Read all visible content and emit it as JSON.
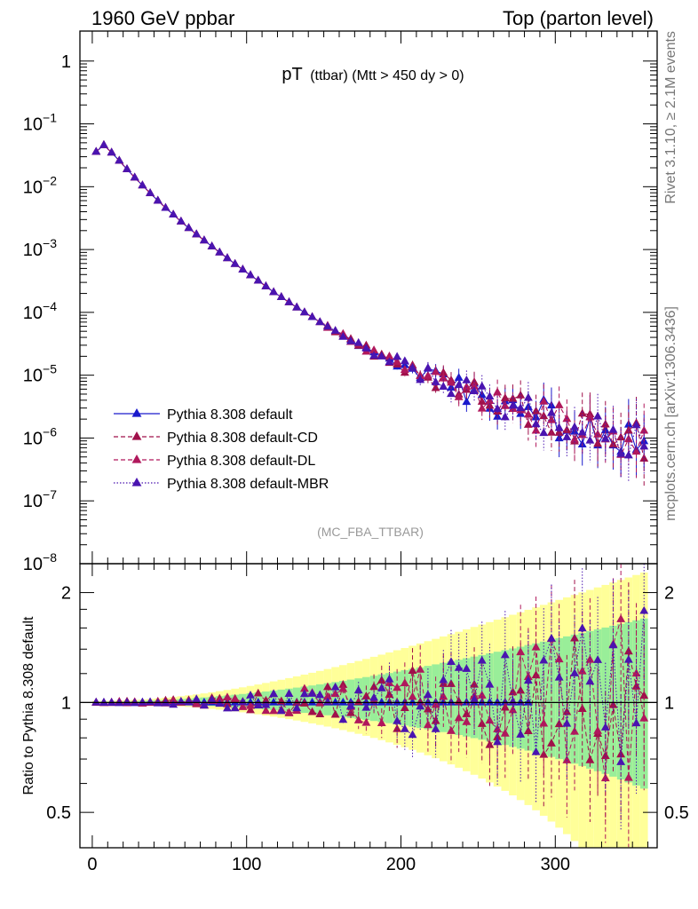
{
  "header": {
    "left": "1960 GeV ppbar",
    "right": "Top (parton level)"
  },
  "side_text": {
    "rivet": "Rivet 3.1.10, ≥ 2.1M events",
    "mcplots": "mcplots.cern.ch [arXiv:1306.3436]"
  },
  "chart_data": [
    {
      "type": "line",
      "panel": "main",
      "title": "pT (ttbar) (Mtt > 450 dy > 0)",
      "title_main": "pT",
      "title_sub": "(ttbar) (Mtt > 450 dy > 0)",
      "watermark": "(MC_FBA_TTBAR)",
      "xlim": [
        -8,
        366
      ],
      "ylim": [
        1e-08,
        3
      ],
      "log_y": true,
      "yticks": [
        {
          "label": "1",
          "value": 1
        },
        {
          "label": "10",
          "exp": "−1",
          "value": 0.1
        },
        {
          "label": "10",
          "exp": "−2",
          "value": 0.01
        },
        {
          "label": "10",
          "exp": "−3",
          "value": 0.001
        },
        {
          "label": "10",
          "exp": "−4",
          "value": 0.0001
        },
        {
          "label": "10",
          "exp": "−5",
          "value": 1e-05
        },
        {
          "label": "10",
          "exp": "−6",
          "value": 1e-06
        },
        {
          "label": "10",
          "exp": "−7",
          "value": 1e-07
        },
        {
          "label": "10",
          "exp": "−8",
          "value": 1e-08
        }
      ],
      "legend_position": "bottom-left",
      "series": [
        {
          "name": "Pythia 8.308 default",
          "color": "#1a1acc",
          "dash": "solid",
          "ratio_offset": 0
        },
        {
          "name": "Pythia 8.308 default-CD",
          "color": "#a0104a",
          "dash": "dashed",
          "ratio_offset": 1
        },
        {
          "name": "Pythia 8.308 default-DL",
          "color": "#b0185c",
          "dash": "dashed",
          "ratio_offset": 2
        },
        {
          "name": "Pythia 8.308 default-MBR",
          "color": "#4a14b0",
          "dash": "dotted",
          "ratio_offset": 3
        }
      ],
      "curve": {
        "x": [
          2.5,
          7.5,
          12.5,
          17.5,
          22.5,
          27.5,
          32.5,
          37.5,
          42.5,
          47.5,
          52.5,
          57.5,
          62.5,
          67.5,
          72.5,
          77.5,
          82.5,
          87.5,
          92.5,
          97.5,
          102.5,
          107.5,
          112.5,
          117.5,
          122.5,
          127.5,
          132.5,
          137.5,
          142.5,
          147.5,
          152.5,
          157.5,
          162.5,
          167.5,
          172.5,
          177.5,
          182.5,
          187.5,
          192.5,
          197.5,
          202.5,
          207.5,
          212.5,
          217.5,
          222.5,
          227.5,
          232.5,
          237.5,
          242.5,
          247.5,
          252.5,
          257.5,
          262.5,
          267.5,
          272.5,
          277.5,
          282.5,
          287.5,
          292.5,
          297.5,
          302.5,
          307.5,
          312.5,
          317.5,
          322.5,
          327.5,
          332.5,
          337.5,
          342.5,
          347.5,
          352.5,
          357.5
        ],
        "y": [
          0.036,
          0.046,
          0.035,
          0.026,
          0.019,
          0.014,
          0.0105,
          0.0079,
          0.006,
          0.0046,
          0.0036,
          0.0028,
          0.0022,
          0.00175,
          0.0014,
          0.00112,
          0.0009,
          0.00073,
          0.00059,
          0.00048,
          0.00039,
          0.00032,
          0.00026,
          0.00021,
          0.000175,
          0.000145,
          0.00012,
          0.0001,
          8.4e-05,
          7e-05,
          5.9e-05,
          5e-05,
          4.2e-05,
          3.6e-05,
          3.1e-05,
          2.7e-05,
          2.3e-05,
          2e-05,
          1.75e-05,
          1.53e-05,
          1.35e-05,
          1.2e-05,
          1.06e-05,
          9.4e-06,
          8.4e-06,
          7.5e-06,
          6.7e-06,
          6e-06,
          5.4e-06,
          4.9e-06,
          4.4e-06,
          4e-06,
          3.6e-06,
          3.3e-06,
          3e-06,
          2.7e-06,
          2.5e-06,
          2.3e-06,
          2.1e-06,
          1.9e-06,
          1.8e-06,
          1.6e-06,
          1.5e-06,
          1.4e-06,
          1.3e-06,
          1.2e-06,
          1.1e-06,
          1e-06,
          9e-07,
          9e-07,
          9e-07,
          9e-07
        ]
      }
    },
    {
      "type": "line",
      "panel": "ratio",
      "ylabel": "Ratio to Pythia 8.308 default",
      "xlim": [
        -8,
        366
      ],
      "ylim": [
        0.4,
        2.4
      ],
      "log_y": true,
      "xticks": [
        {
          "label": "0",
          "value": 0
        },
        {
          "label": "100",
          "value": 100
        },
        {
          "label": "200",
          "value": 200
        },
        {
          "label": "300",
          "value": 300
        }
      ],
      "yticks": [
        {
          "label": "0.5",
          "value": 0.5
        },
        {
          "label": "1",
          "value": 1
        },
        {
          "label": "2",
          "value": 2
        }
      ],
      "reference_line": 1
    }
  ]
}
